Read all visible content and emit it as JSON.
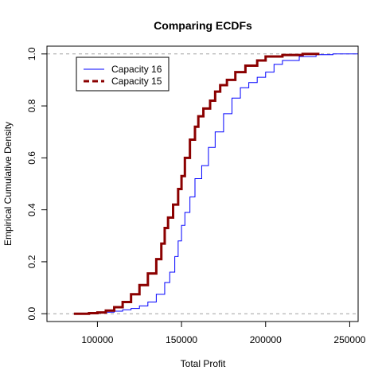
{
  "chart_data": {
    "type": "line",
    "title": "Comparing ECDFs",
    "xlabel": "Total Profit",
    "ylabel": "Empirical Cumulative Density",
    "xlim": [
      70000,
      255000
    ],
    "ylim": [
      -0.03,
      1.03
    ],
    "x_ticks": [
      100000,
      150000,
      200000,
      250000
    ],
    "x_tick_labels": [
      "100000",
      "150000",
      "200000",
      "250000"
    ],
    "y_ticks": [
      0.0,
      0.2,
      0.4,
      0.6,
      0.8,
      1.0
    ],
    "y_tick_labels": [
      "0.0",
      "0.2",
      "0.4",
      "0.6",
      "0.8",
      "1.0"
    ],
    "reference_lines_y": [
      0.0,
      1.0
    ],
    "legend_position": "top-left",
    "series": [
      {
        "name": "Capacity 16",
        "color": "#0000ff",
        "line_style": "solid",
        "points": [
          [
            88000,
            0.0
          ],
          [
            100000,
            0.003
          ],
          [
            105000,
            0.006
          ],
          [
            110000,
            0.01
          ],
          [
            115000,
            0.015
          ],
          [
            120000,
            0.02
          ],
          [
            125000,
            0.03
          ],
          [
            130000,
            0.045
          ],
          [
            135000,
            0.075
          ],
          [
            140000,
            0.12
          ],
          [
            143000,
            0.16
          ],
          [
            146000,
            0.22
          ],
          [
            148000,
            0.28
          ],
          [
            150000,
            0.34
          ],
          [
            152000,
            0.39
          ],
          [
            155000,
            0.45
          ],
          [
            158000,
            0.52
          ],
          [
            162000,
            0.57
          ],
          [
            166000,
            0.64
          ],
          [
            170000,
            0.7
          ],
          [
            175000,
            0.77
          ],
          [
            180000,
            0.83
          ],
          [
            185000,
            0.87
          ],
          [
            190000,
            0.89
          ],
          [
            195000,
            0.91
          ],
          [
            200000,
            0.93
          ],
          [
            205000,
            0.96
          ],
          [
            210000,
            0.975
          ],
          [
            220000,
            0.99
          ],
          [
            230000,
            0.997
          ],
          [
            240000,
            1.0
          ],
          [
            255000,
            1.0
          ]
        ]
      },
      {
        "name": "Capacity 15",
        "color": "#8b0000",
        "line_style": "dashed",
        "points": [
          [
            86000,
            0.0
          ],
          [
            95000,
            0.002
          ],
          [
            100000,
            0.005
          ],
          [
            105000,
            0.012
          ],
          [
            110000,
            0.025
          ],
          [
            115000,
            0.045
          ],
          [
            120000,
            0.075
          ],
          [
            125000,
            0.11
          ],
          [
            130000,
            0.155
          ],
          [
            135000,
            0.21
          ],
          [
            138000,
            0.27
          ],
          [
            140000,
            0.33
          ],
          [
            142000,
            0.37
          ],
          [
            145000,
            0.42
          ],
          [
            148000,
            0.48
          ],
          [
            150000,
            0.53
          ],
          [
            152000,
            0.6
          ],
          [
            155000,
            0.67
          ],
          [
            158000,
            0.72
          ],
          [
            160000,
            0.76
          ],
          [
            163000,
            0.79
          ],
          [
            167000,
            0.82
          ],
          [
            170000,
            0.855
          ],
          [
            173000,
            0.88
          ],
          [
            177000,
            0.9
          ],
          [
            182000,
            0.93
          ],
          [
            188000,
            0.955
          ],
          [
            195000,
            0.975
          ],
          [
            200000,
            0.99
          ],
          [
            210000,
            0.996
          ],
          [
            222000,
            1.0
          ],
          [
            232000,
            1.0
          ]
        ]
      }
    ]
  }
}
